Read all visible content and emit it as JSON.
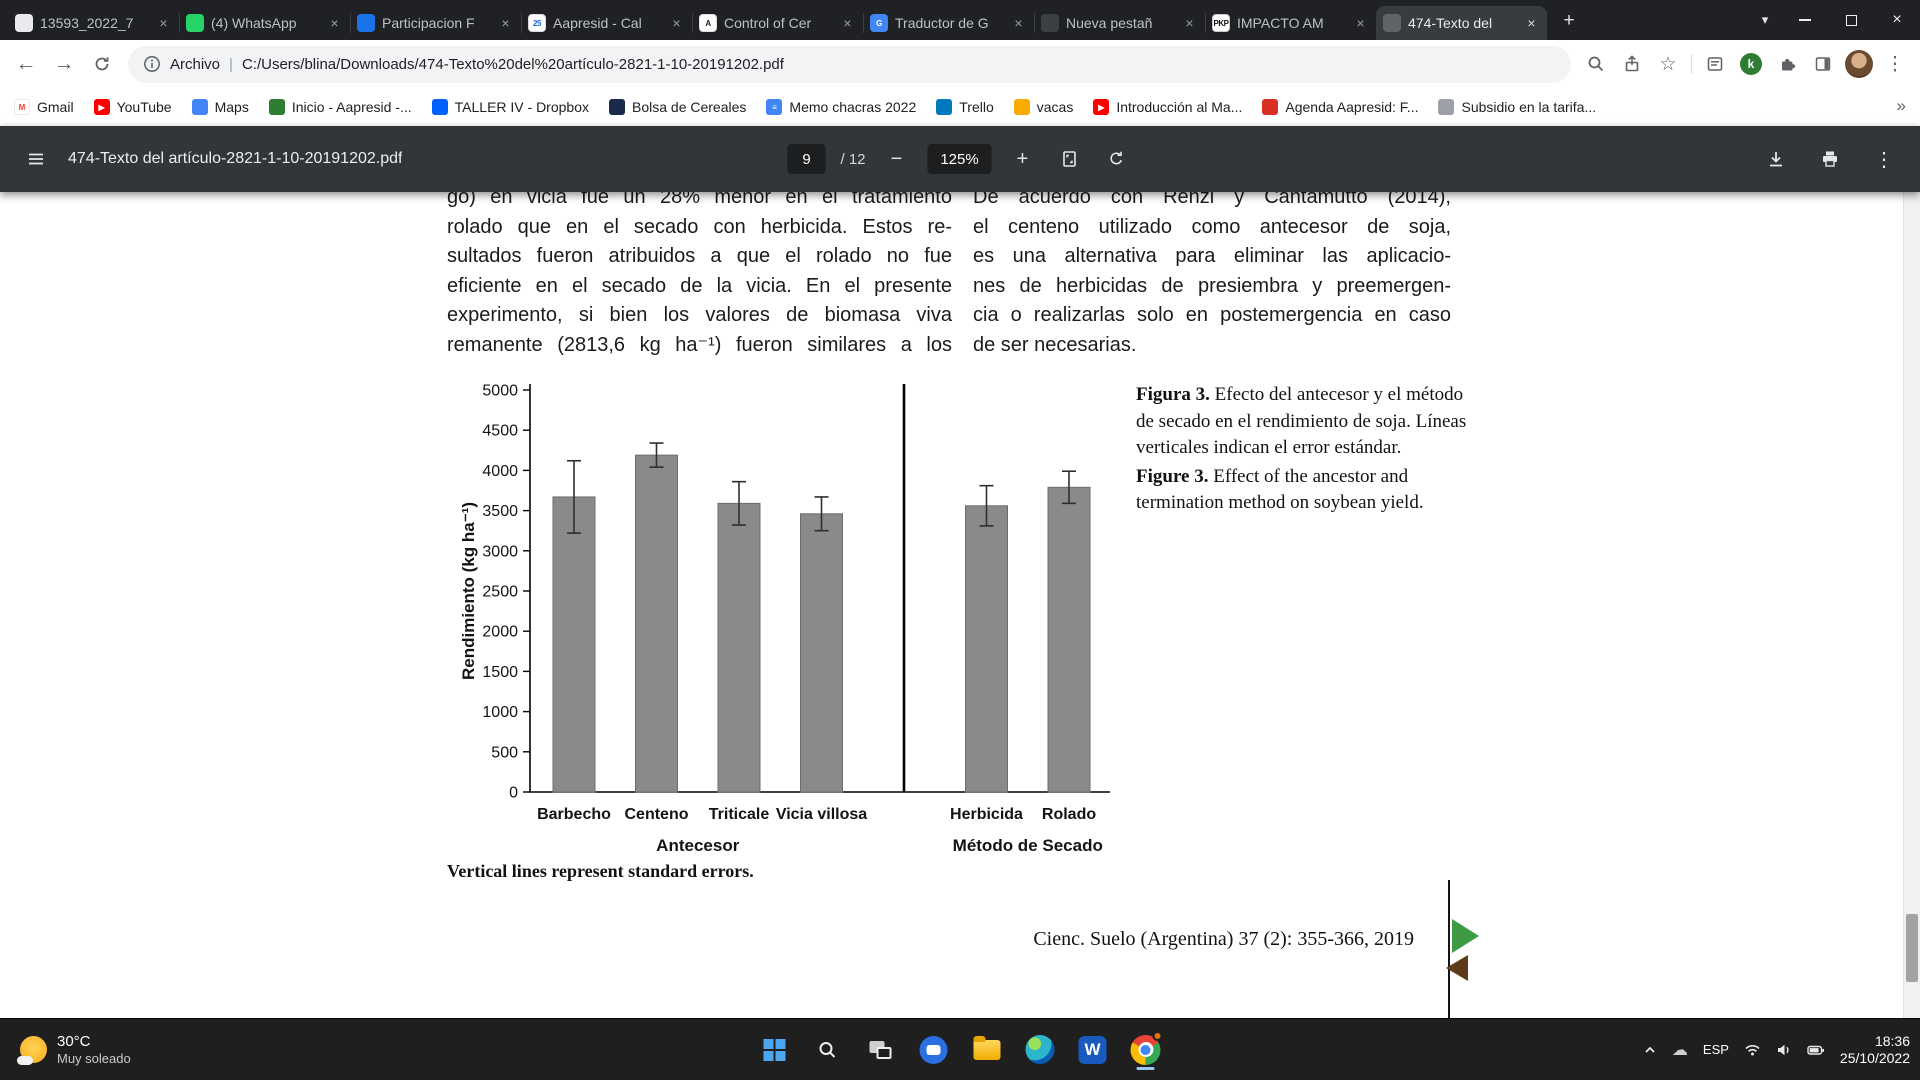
{
  "glyphs": {
    "plus": "+",
    "minus": "−",
    "back": "←",
    "forward": "→",
    "star": "☆",
    "dots": "⋮",
    "tab_chevron": "▾",
    "more_bookmarks": "»",
    "close_tab": "×",
    "close_window": "×",
    "cloud": "☁",
    "pipe": "|",
    "ext_k": "k",
    "word": "W"
  },
  "browser": {
    "tabs": [
      {
        "title": "13593_2022_7",
        "icon": {
          "bg": "#e8eaed",
          "fg": "#5f6368",
          "glyph": ""
        }
      },
      {
        "title": "(4) WhatsApp",
        "icon": {
          "bg": "#25d366",
          "fg": "#ffffff",
          "glyph": ""
        }
      },
      {
        "title": "Participacion F",
        "icon": {
          "bg": "#1a73e8",
          "fg": "#ffffff",
          "glyph": ""
        }
      },
      {
        "title": "Aapresid - Cal",
        "icon": {
          "bg": "#ffffff",
          "fg": "#1967d2",
          "glyph": "25",
          "bd": "#dadce0"
        }
      },
      {
        "title": "Control of Cer",
        "icon": {
          "bg": "#ffffff",
          "fg": "#202124",
          "glyph": "A",
          "bd": "#e0e0e0"
        }
      },
      {
        "title": "Traductor de G",
        "icon": {
          "bg": "#4285f4",
          "fg": "#ffffff",
          "glyph": "G"
        }
      },
      {
        "title": "Nueva pestañ",
        "icon": {
          "bg": "#3c4043",
          "fg": "#9aa0a6",
          "glyph": ""
        }
      },
      {
        "title": "IMPACTO AM",
        "icon": {
          "bg": "#ffffff",
          "fg": "#111111",
          "glyph": "PKP",
          "bd": "#cccccc"
        }
      },
      {
        "title": "474-Texto del",
        "icon": {
          "bg": "#5f6368",
          "fg": "#ffffff",
          "glyph": ""
        },
        "active": true
      }
    ],
    "address": {
      "scheme": "Archivo",
      "url": "C:/Users/blina/Downloads/474-Texto%20del%20artículo-2821-1-10-20191202.pdf"
    },
    "bookmarks": [
      {
        "label": "Gmail",
        "icon": {
          "bg": "#ffffff",
          "fg": "#ea4335",
          "glyph": "M",
          "bd": "#e8e8e8"
        }
      },
      {
        "label": "YouTube",
        "icon": {
          "bg": "#ff0000",
          "fg": "#ffffff",
          "glyph": "▶"
        }
      },
      {
        "label": "Maps",
        "icon": {
          "bg": "#4285f4",
          "fg": "#ffffff",
          "glyph": ""
        }
      },
      {
        "label": "Inicio - Aapresid -...",
        "icon": {
          "bg": "#2e7d32",
          "fg": "#ffffff",
          "glyph": ""
        }
      },
      {
        "label": "TALLER IV - Dropbox",
        "icon": {
          "bg": "#0061ff",
          "fg": "#ffffff",
          "glyph": ""
        }
      },
      {
        "label": "Bolsa de Cereales",
        "icon": {
          "bg": "#1b2a4a",
          "fg": "#ffffff",
          "glyph": ""
        }
      },
      {
        "label": "Memo chacras 2022",
        "icon": {
          "bg": "#4285f4",
          "fg": "#ffffff",
          "glyph": "≡"
        }
      },
      {
        "label": "Trello",
        "icon": {
          "bg": "#0079bf",
          "fg": "#ffffff",
          "glyph": ""
        }
      },
      {
        "label": "vacas",
        "icon": {
          "bg": "#f9ab00",
          "fg": "#ffffff",
          "glyph": ""
        }
      },
      {
        "label": "Introducción al Ma...",
        "icon": {
          "bg": "#ff0000",
          "fg": "#ffffff",
          "glyph": "▶"
        }
      },
      {
        "label": "Agenda Aapresid: F...",
        "icon": {
          "bg": "#d93025",
          "fg": "#ffffff",
          "glyph": ""
        }
      },
      {
        "label": "Subsidio en la tarifa...",
        "icon": {
          "bg": "#9aa0a6",
          "fg": "#ffffff",
          "glyph": ""
        }
      }
    ]
  },
  "pdf_toolbar": {
    "filename": "474-Texto del artículo-2821-1-10-20191202.pdf",
    "page": "9",
    "page_total": "/ 12",
    "zoom": "125%"
  },
  "document": {
    "left_column_lines": [
      "go) en vicia fue un 28% menor en el tratamiento",
      "rolado que en el secado con herbicida. Estos re-",
      "sultados fueron atribuidos a que el rolado no fue",
      "eficiente en el secado de la vicia. En el presente",
      "experimento, si bien los valores de biomasa viva",
      "remanente (2813,6 kg ha⁻¹) fueron similares a los"
    ],
    "right_column_lines": [
      "De acuerdo con Renzi y Cantamutto (2014),",
      "el centeno utilizado como antecesor de soja,",
      "es una alternativa para eliminar las aplicacio-",
      "nes de herbicidas de presiembra y preemergen-",
      "cia o realizarlas solo en postemergencia en caso",
      "de ser necesarias."
    ],
    "captions": [
      {
        "label": "Figura 3.",
        "text": "Efecto del antecesor y el método de secado en el rendimiento de soja. Líneas verticales indican el error estándar."
      },
      {
        "label": "Figure 3.",
        "text": "Effect of the ancestor and termination method on soybean yield."
      }
    ],
    "note": "Vertical lines represent standard errors.",
    "footer": "Cienc. Suelo (Argentina) 37 (2): 355-366, 2019"
  },
  "chart_data": {
    "type": "bar",
    "ylabel": "Rendimiento (kg ha⁻¹)",
    "ylim": [
      0,
      5000
    ],
    "ytick_step": 500,
    "bar_color": "#8a8a8a",
    "grid": false,
    "legend": false,
    "separator_between_groups": true,
    "groups": [
      {
        "label": "Antecesor",
        "categories": [
          "Barbecho",
          "Centeno",
          "Triticale",
          "Vicia villosa"
        ],
        "values": [
          3670,
          4190,
          3590,
          3460
        ],
        "errors": [
          450,
          150,
          270,
          210
        ]
      },
      {
        "label": "Método de Secado",
        "categories": [
          "Herbicida",
          "Rolado"
        ],
        "values": [
          3560,
          3790
        ],
        "errors": [
          250,
          200
        ]
      }
    ]
  },
  "taskbar": {
    "weather": {
      "temp": "30°C",
      "desc": "Muy soleado"
    },
    "apps": [
      "start",
      "search",
      "task-view",
      "chat",
      "file-explorer",
      "edge",
      "word",
      "chrome"
    ],
    "tray": {
      "lang": "ESP",
      "time": "18:36",
      "date": "25/10/2022"
    }
  }
}
